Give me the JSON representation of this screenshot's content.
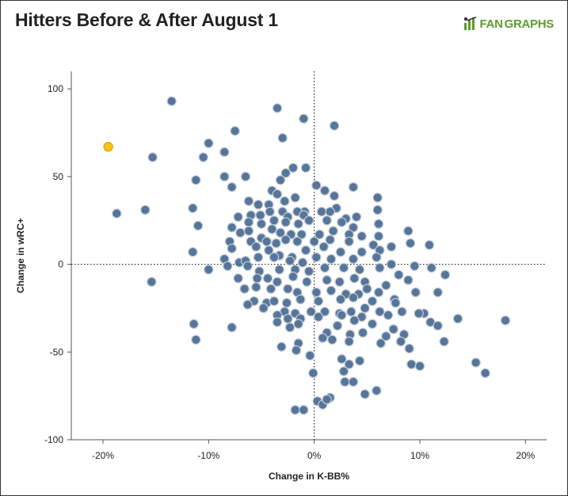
{
  "header": {
    "title": "Hitters Before & After August 1",
    "brand_part1": "FAN",
    "brand_part2": "GRAPHS"
  },
  "chart_data": {
    "type": "scatter",
    "title": "Hitters Before & After August 1",
    "xlabel": "Change in K-BB%",
    "ylabel": "Change in wRC+",
    "xlim": [
      -23,
      22
    ],
    "ylim": [
      -100,
      110
    ],
    "x_ticks": [
      -20,
      -10,
      0,
      10,
      20
    ],
    "x_tick_labels": [
      "-20%",
      "-10%",
      "0%",
      "10%",
      "20%"
    ],
    "y_ticks": [
      -100,
      -50,
      0,
      50,
      100
    ],
    "y_tick_labels": [
      "-100",
      "-50",
      "0",
      "50",
      "100"
    ],
    "reference_lines": {
      "x": 0,
      "y": 0,
      "style": "dotted"
    },
    "grid": false,
    "colors": {
      "point": "#56759a",
      "point_stroke": "#c2cbd6",
      "highlight": "#f5c518",
      "highlight_stroke": "#d9a400"
    },
    "highlight": {
      "x": -19.5,
      "y": 67
    },
    "points": [
      [
        -13.5,
        93
      ],
      [
        -3.5,
        89
      ],
      [
        -1,
        83
      ],
      [
        1.9,
        79
      ],
      [
        -7.5,
        76
      ],
      [
        -3,
        72
      ],
      [
        -10,
        69
      ],
      [
        -8.5,
        64
      ],
      [
        -15.3,
        61
      ],
      [
        -10.5,
        61
      ],
      [
        -2,
        55
      ],
      [
        -0.8,
        55
      ],
      [
        -6.5,
        50
      ],
      [
        -8.5,
        50
      ],
      [
        -11.2,
        48
      ],
      [
        -2.7,
        52
      ],
      [
        -3.2,
        48
      ],
      [
        -7.8,
        44
      ],
      [
        0.2,
        45
      ],
      [
        3.7,
        44
      ],
      [
        1,
        42
      ],
      [
        -4,
        42
      ],
      [
        -3.5,
        40
      ],
      [
        -1.8,
        38
      ],
      [
        1.9,
        39
      ],
      [
        6,
        38
      ],
      [
        -4.3,
        34
      ],
      [
        -2.8,
        36
      ],
      [
        -6.2,
        36
      ],
      [
        -5.3,
        34
      ],
      [
        2.1,
        32
      ],
      [
        -0.9,
        30
      ],
      [
        -1.6,
        30
      ],
      [
        -18.7,
        29
      ],
      [
        -16,
        31
      ],
      [
        -11.5,
        32
      ],
      [
        -7.2,
        27
      ],
      [
        -6,
        28
      ],
      [
        -5.1,
        28
      ],
      [
        -4.2,
        30
      ],
      [
        -3,
        30
      ],
      [
        -2.5,
        27
      ],
      [
        -1,
        28
      ],
      [
        0.7,
        30
      ],
      [
        1.5,
        30
      ],
      [
        3,
        26
      ],
      [
        4,
        27
      ],
      [
        6,
        31
      ],
      [
        -11,
        22
      ],
      [
        -6.2,
        24
      ],
      [
        -5,
        23
      ],
      [
        -3.8,
        25
      ],
      [
        -2.7,
        24
      ],
      [
        -1.5,
        23
      ],
      [
        -0.5,
        25
      ],
      [
        1.2,
        25
      ],
      [
        2.6,
        24
      ],
      [
        3.7,
        21
      ],
      [
        6.1,
        23
      ],
      [
        8.9,
        19
      ],
      [
        -7.8,
        21
      ],
      [
        -7,
        18
      ],
      [
        -6.2,
        19
      ],
      [
        -5,
        15
      ],
      [
        -4,
        20
      ],
      [
        -3.2,
        18
      ],
      [
        -2.2,
        17
      ],
      [
        -1.2,
        17
      ],
      [
        0.5,
        17
      ],
      [
        1.8,
        19
      ],
      [
        3.3,
        17
      ],
      [
        4.5,
        16
      ],
      [
        6.1,
        16
      ],
      [
        9.1,
        12
      ],
      [
        -8,
        13
      ],
      [
        -6,
        13
      ],
      [
        -4.5,
        13
      ],
      [
        -3.6,
        12
      ],
      [
        -2.7,
        14
      ],
      [
        -1.6,
        13
      ],
      [
        0,
        13
      ],
      [
        1.5,
        14
      ],
      [
        3.3,
        13
      ],
      [
        5.6,
        11
      ],
      [
        7.3,
        10
      ],
      [
        10.9,
        11
      ],
      [
        -11.5,
        7
      ],
      [
        -7.8,
        9
      ],
      [
        -5.5,
        10
      ],
      [
        -4.3,
        8
      ],
      [
        -3.3,
        5
      ],
      [
        -2.1,
        4
      ],
      [
        -0.8,
        8
      ],
      [
        0.9,
        10
      ],
      [
        2.5,
        7
      ],
      [
        4.5,
        7
      ],
      [
        6.2,
        8
      ],
      [
        -8.5,
        3
      ],
      [
        -7.1,
        1
      ],
      [
        -6.5,
        2
      ],
      [
        -5.3,
        4
      ],
      [
        -3.8,
        4
      ],
      [
        -2.3,
        2
      ],
      [
        -1.1,
        1
      ],
      [
        0.2,
        4
      ],
      [
        1.6,
        3
      ],
      [
        3.7,
        3
      ],
      [
        5.9,
        4
      ],
      [
        7.3,
        0
      ],
      [
        9.5,
        -1
      ],
      [
        -10,
        -3
      ],
      [
        -8.2,
        -1
      ],
      [
        -6.3,
        -1
      ],
      [
        -5.2,
        -4
      ],
      [
        -3.3,
        -3
      ],
      [
        -1.8,
        -3
      ],
      [
        -0.5,
        -4
      ],
      [
        1,
        -2
      ],
      [
        2.8,
        -2
      ],
      [
        4.3,
        -3
      ],
      [
        6.2,
        -2
      ],
      [
        8,
        -6
      ],
      [
        11.1,
        -2
      ],
      [
        12.4,
        -6
      ],
      [
        -15.4,
        -10
      ],
      [
        -7.2,
        -8
      ],
      [
        -5.4,
        -8
      ],
      [
        -4.4,
        -8
      ],
      [
        -3.5,
        -10
      ],
      [
        -2,
        -7
      ],
      [
        -0.7,
        -10
      ],
      [
        1.2,
        -9
      ],
      [
        2.4,
        -10
      ],
      [
        3.8,
        -8
      ],
      [
        4.8,
        -10
      ],
      [
        6.8,
        -12
      ],
      [
        8.9,
        -9
      ],
      [
        -6.6,
        -14
      ],
      [
        -5.5,
        -13
      ],
      [
        -4.1,
        -14
      ],
      [
        -2.5,
        -14
      ],
      [
        -1.6,
        -16
      ],
      [
        0.2,
        -16
      ],
      [
        1.6,
        -15
      ],
      [
        3,
        -17
      ],
      [
        4.2,
        -17
      ],
      [
        5,
        -14
      ],
      [
        6.1,
        -16
      ],
      [
        9.6,
        -16
      ],
      [
        11.7,
        -16
      ],
      [
        -5.7,
        -21
      ],
      [
        -4.5,
        -22
      ],
      [
        -3.8,
        -21
      ],
      [
        -2.6,
        -22
      ],
      [
        -1.3,
        -20
      ],
      [
        0.4,
        -21
      ],
      [
        2.5,
        -20
      ],
      [
        3.7,
        -19
      ],
      [
        5.5,
        -21
      ],
      [
        7.6,
        -20
      ],
      [
        -6.3,
        -23
      ],
      [
        -4.8,
        -25
      ],
      [
        -2.8,
        -27
      ],
      [
        -1.8,
        -28
      ],
      [
        -0.3,
        -27
      ],
      [
        1,
        -27
      ],
      [
        2.4,
        -28
      ],
      [
        3.5,
        -27
      ],
      [
        4.8,
        -25
      ],
      [
        6.2,
        -27
      ],
      [
        7.7,
        -22
      ],
      [
        8.3,
        -27
      ],
      [
        10.4,
        -28
      ],
      [
        -3.5,
        -29
      ],
      [
        -1.3,
        -31
      ],
      [
        0.4,
        -30
      ],
      [
        2.6,
        -29
      ],
      [
        4.5,
        -30
      ],
      [
        7,
        -29
      ],
      [
        -3.5,
        -33
      ],
      [
        -2.5,
        -31
      ],
      [
        -1.5,
        -34
      ],
      [
        2.2,
        -35
      ],
      [
        3.8,
        -32
      ],
      [
        5.5,
        -34
      ],
      [
        9.9,
        -28
      ],
      [
        11,
        -33
      ],
      [
        11.7,
        -35
      ],
      [
        13.6,
        -31
      ],
      [
        18.1,
        -32
      ],
      [
        -11.4,
        -34
      ],
      [
        -7.8,
        -36
      ],
      [
        -2.3,
        -36
      ],
      [
        1.2,
        -39
      ],
      [
        3.4,
        -40
      ],
      [
        4.6,
        -39
      ],
      [
        7.5,
        -37
      ],
      [
        8.5,
        -40
      ],
      [
        -11.2,
        -43
      ],
      [
        -3.1,
        -47
      ],
      [
        -1.5,
        -45
      ],
      [
        -1.7,
        -49
      ],
      [
        0.8,
        -42
      ],
      [
        1.7,
        -43
      ],
      [
        3.3,
        -44
      ],
      [
        6.3,
        -45
      ],
      [
        6.8,
        -41
      ],
      [
        8.2,
        -44
      ],
      [
        9,
        -48
      ],
      [
        12.3,
        -44
      ],
      [
        -0.4,
        -52
      ],
      [
        2.6,
        -54
      ],
      [
        3.3,
        -57
      ],
      [
        4.3,
        -55
      ],
      [
        9.2,
        -57
      ],
      [
        10,
        -58
      ],
      [
        15.3,
        -56
      ],
      [
        16.2,
        -62
      ],
      [
        -0.1,
        -62
      ],
      [
        2.8,
        -61
      ],
      [
        2.9,
        -67
      ],
      [
        3.7,
        -67
      ],
      [
        4.8,
        -74
      ],
      [
        5.9,
        -72
      ],
      [
        1.5,
        -76
      ],
      [
        0.3,
        -78
      ],
      [
        0.8,
        -80
      ],
      [
        1.2,
        -77
      ],
      [
        -1.8,
        -83
      ],
      [
        -1,
        -83
      ]
    ]
  }
}
